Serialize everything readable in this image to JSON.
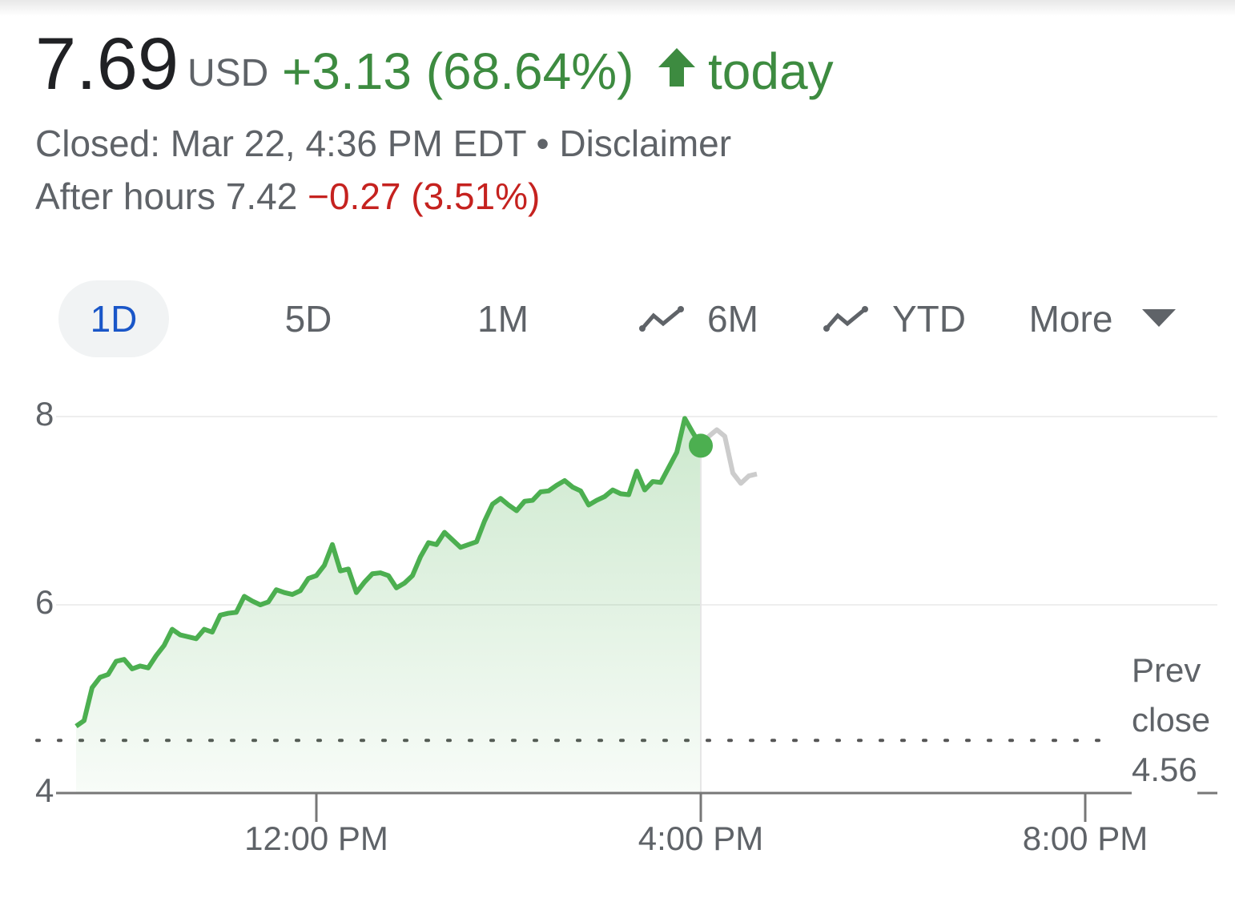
{
  "header": {
    "price": "7.69",
    "currency": "USD",
    "change": "+3.13 (68.64%)",
    "period": "today",
    "closed": "Closed: Mar 22, 4:36 PM EDT",
    "separator": "•",
    "disclaimer": "Disclaimer",
    "after_hours": "After hours 7.42",
    "after_hours_change": "−0.27 (3.51%)"
  },
  "tabs": [
    "1D",
    "5D",
    "1M",
    "6M",
    "YTD",
    "More"
  ],
  "chart_data": {
    "type": "line",
    "xlim": [
      557.5,
      1282.5
    ],
    "xticks": [
      {
        "value": 720,
        "label": "12:00 PM"
      },
      {
        "value": 960,
        "label": "4:00 PM"
      },
      {
        "value": 1200,
        "label": "8:00 PM"
      }
    ],
    "ylim": [
      4,
      8
    ],
    "yticks": [
      4,
      6,
      8
    ],
    "grid": true,
    "prev_close_label": "Prev close",
    "prev_close": 4.56,
    "series": [
      {
        "color": "#4caf50",
        "fill": true,
        "x": [
          570,
          575,
          580,
          585,
          590,
          595,
          600,
          605,
          610,
          615,
          620,
          625,
          630,
          635,
          640,
          645,
          650,
          655,
          660,
          665,
          670,
          675,
          680,
          685,
          690,
          695,
          700,
          705,
          710,
          715,
          720,
          725,
          730,
          735,
          740,
          745,
          750,
          755,
          760,
          765,
          770,
          775,
          780,
          785,
          790,
          795,
          800,
          805,
          810,
          815,
          820,
          825,
          830,
          835,
          840,
          845,
          850,
          855,
          860,
          865,
          870,
          875,
          880,
          885,
          890,
          895,
          900,
          905,
          910,
          915,
          920,
          925,
          930,
          935,
          940,
          945,
          950,
          955,
          960
        ],
        "values": [
          4.71,
          4.77,
          5.12,
          5.23,
          5.26,
          5.4,
          5.42,
          5.32,
          5.35,
          5.33,
          5.46,
          5.57,
          5.74,
          5.68,
          5.66,
          5.64,
          5.74,
          5.71,
          5.89,
          5.91,
          5.92,
          6.09,
          6.04,
          6.0,
          6.03,
          6.16,
          6.13,
          6.11,
          6.15,
          6.28,
          6.31,
          6.42,
          6.64,
          6.36,
          6.38,
          6.13,
          6.24,
          6.33,
          6.34,
          6.31,
          6.18,
          6.23,
          6.31,
          6.51,
          6.66,
          6.64,
          6.77,
          6.69,
          6.61,
          6.64,
          6.67,
          6.89,
          7.07,
          7.13,
          7.06,
          7.0,
          7.1,
          7.11,
          7.2,
          7.21,
          7.27,
          7.32,
          7.25,
          7.21,
          7.06,
          7.11,
          7.15,
          7.22,
          7.18,
          7.17,
          7.42,
          7.22,
          7.31,
          7.3,
          7.46,
          7.62,
          7.98,
          7.83,
          7.69
        ]
      },
      {
        "color": "#cccccc",
        "fill": false,
        "x": [
          960,
          965,
          970,
          975,
          980,
          985,
          990,
          995
        ],
        "values": [
          7.69,
          7.79,
          7.86,
          7.79,
          7.4,
          7.29,
          7.37,
          7.39
        ]
      }
    ]
  }
}
